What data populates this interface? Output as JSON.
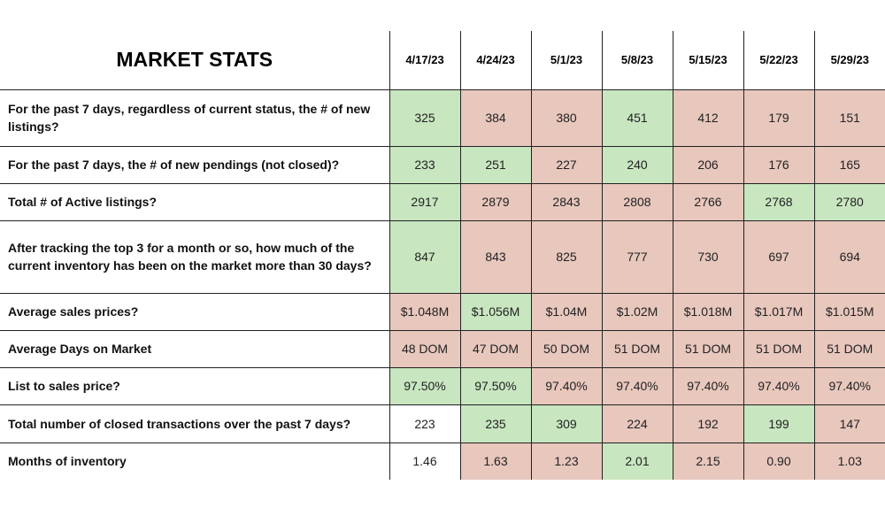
{
  "title": "MARKET STATS",
  "dates": [
    "4/17/23",
    "4/24/23",
    "5/1/23",
    "5/8/23",
    "5/15/23",
    "5/22/23",
    "5/29/23"
  ],
  "colors": {
    "good": "#c8e6c0",
    "bad": "#e8c7bd",
    "neutral": "#ffffff"
  },
  "rows": [
    {
      "question": "For the past 7 days, regardless of current status, the # of new listings?",
      "values": [
        "325",
        "384",
        "380",
        "451",
        "412",
        "179",
        "151"
      ],
      "status": [
        "good",
        "bad",
        "bad",
        "good",
        "bad",
        "bad",
        "bad"
      ]
    },
    {
      "question": "For the past 7 days, the # of new pendings (not closed)?",
      "values": [
        "233",
        "251",
        "227",
        "240",
        "206",
        "176",
        "165"
      ],
      "status": [
        "good",
        "good",
        "bad",
        "good",
        "bad",
        "bad",
        "bad"
      ]
    },
    {
      "question": "Total # of Active listings?",
      "values": [
        "2917",
        "2879",
        "2843",
        "2808",
        "2766",
        "2768",
        "2780"
      ],
      "status": [
        "good",
        "bad",
        "bad",
        "bad",
        "bad",
        "good",
        "good"
      ]
    },
    {
      "question": "After tracking the top 3 for a month or so, how much of the current inventory has been on the market more than 30 days?",
      "values": [
        "847",
        "843",
        "825",
        "777",
        "730",
        "697",
        "694"
      ],
      "status": [
        "good",
        "bad",
        "bad",
        "bad",
        "bad",
        "bad",
        "bad"
      ]
    },
    {
      "question": "Average sales prices?",
      "values": [
        "$1.048M",
        "$1.056M",
        "$1.04M",
        "$1.02M",
        "$1.018M",
        "$1.017M",
        "$1.015M"
      ],
      "status": [
        "bad",
        "good",
        "bad",
        "bad",
        "bad",
        "bad",
        "bad"
      ]
    },
    {
      "question": "Average Days on Market",
      "values": [
        "48 DOM",
        "47 DOM",
        "50 DOM",
        "51 DOM",
        "51 DOM",
        "51 DOM",
        "51 DOM"
      ],
      "status": [
        "bad",
        "bad",
        "bad",
        "bad",
        "bad",
        "bad",
        "bad"
      ]
    },
    {
      "question": "List to sales price?",
      "values": [
        "97.50%",
        "97.50%",
        "97.40%",
        "97.40%",
        "97.40%",
        "97.40%",
        "97.40%"
      ],
      "status": [
        "good",
        "good",
        "bad",
        "bad",
        "bad",
        "bad",
        "bad"
      ]
    },
    {
      "question": "Total number of closed transactions over the past 7 days?",
      "values": [
        "223",
        "235",
        "309",
        "224",
        "192",
        "199",
        "147"
      ],
      "status": [
        "neutral",
        "good",
        "good",
        "bad",
        "bad",
        "good",
        "bad"
      ]
    },
    {
      "question": "Months of inventory",
      "values": [
        "1.46",
        "1.63",
        "1.23",
        "2.01",
        "2.15",
        "0.90",
        "1.03"
      ],
      "status": [
        "neutral",
        "bad",
        "bad",
        "good",
        "bad",
        "bad",
        "bad"
      ]
    }
  ]
}
